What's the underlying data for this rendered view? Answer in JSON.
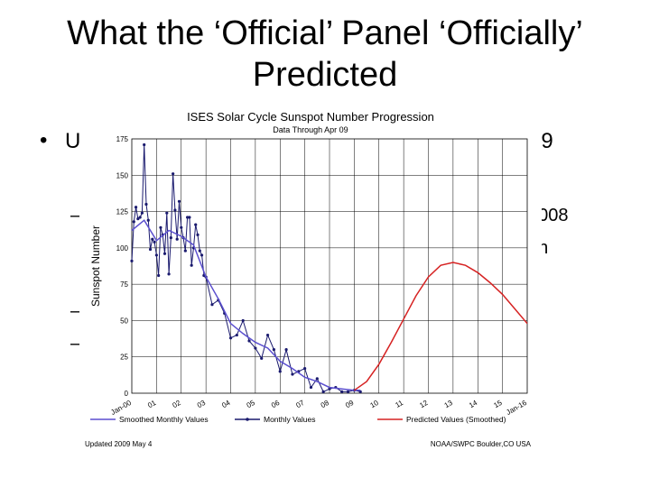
{
  "slide": {
    "title_line1": "What the ‘Official’ Panel ‘Officially’",
    "title_line2": "Predicted",
    "bullet_symbol": "•",
    "bullet_start": "U",
    "bullet_end": "09",
    "sub_dash_1": "–",
    "sub_end_1": "2008",
    "sub_end_1b": "gh",
    "sub_dash_2": "–",
    "sub_dash_3": "–",
    "sub_end_3": ")"
  },
  "colors": {
    "monthly": "#1a1a6e",
    "smoothed": "#5b4fcf",
    "predicted": "#d62222",
    "grid": "#000000"
  },
  "chart_data": {
    "type": "line",
    "title": "ISES Solar Cycle Sunspot Number Progression",
    "subtitle": "Data Through Apr 09",
    "ylabel": "Sunspot Number",
    "xlabel": "",
    "ylim": [
      0,
      175
    ],
    "xlim": [
      2000,
      2016
    ],
    "yticks": [
      0,
      25,
      50,
      75,
      100,
      125,
      150,
      175
    ],
    "xtick_labels": [
      "Jan-00",
      "01",
      "02",
      "03",
      "04",
      "05",
      "06",
      "07",
      "08",
      "09",
      "10",
      "11",
      "12",
      "13",
      "14",
      "15",
      "Jan-16"
    ],
    "grid": "vertical",
    "legend": "bottom",
    "series": [
      {
        "name": "Monthly Values",
        "x": [
          2000.0,
          2000.083,
          2000.167,
          2000.25,
          2000.333,
          2000.417,
          2000.5,
          2000.583,
          2000.667,
          2000.75,
          2000.833,
          2000.917,
          2001.0,
          2001.083,
          2001.167,
          2001.25,
          2001.333,
          2001.417,
          2001.5,
          2001.583,
          2001.667,
          2001.75,
          2001.833,
          2001.917,
          2002.0,
          2002.083,
          2002.167,
          2002.25,
          2002.333,
          2002.417,
          2002.5,
          2002.583,
          2002.667,
          2002.75,
          2002.833,
          2002.917,
          2003.0,
          2003.25,
          2003.5,
          2003.75,
          2004.0,
          2004.25,
          2004.5,
          2004.75,
          2005.0,
          2005.25,
          2005.5,
          2005.75,
          2006.0,
          2006.25,
          2006.5,
          2006.75,
          2007.0,
          2007.25,
          2007.5,
          2007.75,
          2008.0,
          2008.25,
          2008.5,
          2008.75,
          2009.0,
          2009.25
        ],
        "values": [
          91,
          118,
          128,
          120,
          121,
          124,
          171,
          130,
          119,
          99,
          106,
          104,
          95,
          81,
          114,
          109,
          96,
          124,
          82,
          107,
          151,
          126,
          106,
          132,
          114,
          107,
          98,
          121,
          121,
          88,
          100,
          116,
          109,
          98,
          95,
          81,
          80,
          61,
          64,
          55,
          38,
          40,
          50,
          36,
          31,
          24,
          40,
          30,
          15,
          30,
          13,
          15,
          17,
          4,
          10,
          1,
          3,
          4,
          1,
          1,
          2,
          1
        ]
      },
      {
        "name": "Smoothed Monthly Values",
        "x": [
          2000.0,
          2000.5,
          2001.0,
          2001.5,
          2002.0,
          2002.5,
          2003.0,
          2003.5,
          2004.0,
          2004.5,
          2005.0,
          2005.5,
          2006.0,
          2006.5,
          2007.0,
          2007.5,
          2008.0,
          2008.5,
          2009.0,
          2009.25
        ],
        "values": [
          112,
          119,
          105,
          112,
          108,
          102,
          80,
          65,
          48,
          41,
          35,
          31,
          22,
          17,
          11,
          8,
          4,
          3,
          2,
          2
        ]
      },
      {
        "name": "Predicted Values (Smoothed)",
        "x": [
          2009.0,
          2009.5,
          2010.0,
          2010.5,
          2011.0,
          2011.5,
          2012.0,
          2012.5,
          2013.0,
          2013.5,
          2014.0,
          2014.5,
          2015.0,
          2015.5,
          2016.0
        ],
        "values": [
          2,
          8,
          20,
          35,
          51,
          67,
          80,
          88,
          90,
          88,
          83,
          76,
          68,
          58,
          48
        ]
      }
    ],
    "footer_left": "Updated 2009 May 4",
    "footer_right": "NOAA/SWPC Boulder,CO USA"
  }
}
